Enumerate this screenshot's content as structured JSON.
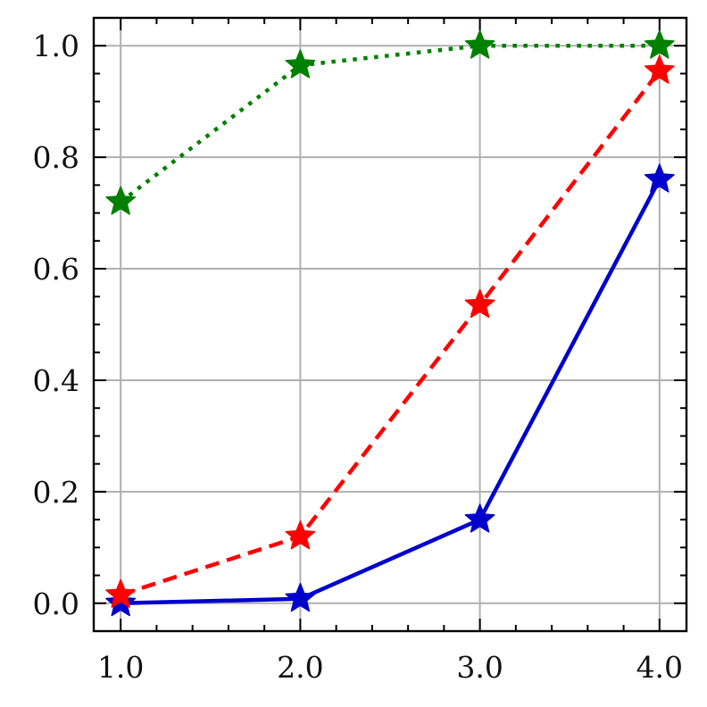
{
  "chart_data": {
    "type": "line",
    "title": "",
    "xlabel": "",
    "ylabel": "",
    "xlim": [
      0.85,
      4.15
    ],
    "ylim": [
      -0.05,
      1.05
    ],
    "grid": true,
    "legend": "none",
    "x_ticks": [
      1.0,
      2.0,
      3.0,
      4.0
    ],
    "x_tick_labels": [
      "1.0",
      "2.0",
      "3.0",
      "4.0"
    ],
    "y_ticks": [
      0.0,
      0.2,
      0.4,
      0.6,
      0.8,
      1.0
    ],
    "y_tick_labels": [
      "0.0",
      "0.2",
      "0.4",
      "0.6",
      "0.8",
      "1.0"
    ],
    "marker": "star",
    "series": [
      {
        "x": [
          1,
          2,
          3,
          4
        ],
        "values": [
          0.0,
          0.008,
          0.15,
          0.76
        ],
        "color": "#0000cc",
        "line_style": "solid"
      },
      {
        "x": [
          1,
          2,
          3,
          4
        ],
        "values": [
          0.015,
          0.12,
          0.535,
          0.955
        ],
        "color": "#ff0000",
        "line_style": "dashed"
      },
      {
        "x": [
          1,
          2,
          3,
          4
        ],
        "values": [
          0.72,
          0.965,
          1.0,
          1.0
        ],
        "color": "#008000",
        "line_style": "dotted"
      }
    ]
  }
}
